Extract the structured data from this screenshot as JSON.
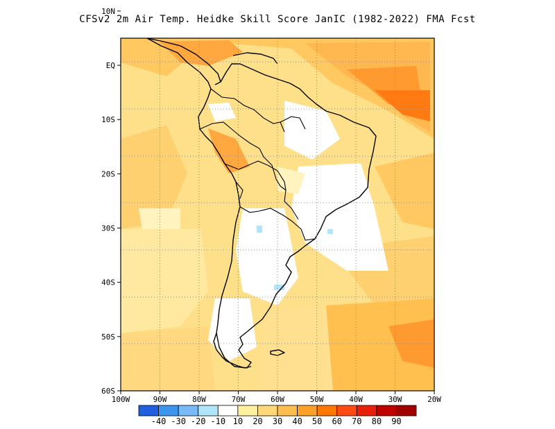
{
  "title": "CFSv2  2m Air Temp. Heidke Skill Score JanIC (1982-2022) FMA Fcst",
  "map": {
    "lat_labels": [
      "10N",
      "EQ",
      "10S",
      "20S",
      "30S",
      "40S",
      "50S",
      "60S"
    ],
    "lon_labels": [
      "100W",
      "90W",
      "80W",
      "70W",
      "60W",
      "50W",
      "40W",
      "30W",
      "20W"
    ],
    "lat_values": [
      10,
      0,
      -10,
      -20,
      -30,
      -40,
      -50,
      -60
    ],
    "lon_values": [
      -100,
      -90,
      -80,
      -70,
      -60,
      -50,
      -40,
      -30,
      -20
    ],
    "lat_range": [
      -60,
      5
    ],
    "lon_range": [
      -100,
      -20
    ],
    "grid": "dotted"
  },
  "colorbar": {
    "colors": [
      "#2060e0",
      "#3c96f0",
      "#78b9f8",
      "#b0e6fa",
      "#ffffff",
      "#fff0a0",
      "#ffd878",
      "#ffbe50",
      "#ffa028",
      "#ff7800",
      "#ff4a10",
      "#e81e0a",
      "#c00000",
      "#a00000"
    ],
    "labels": [
      "-40",
      "-30",
      "-20",
      "-10",
      "10",
      "20",
      "30",
      "40",
      "50",
      "60",
      "70",
      "80",
      "90"
    ]
  }
}
